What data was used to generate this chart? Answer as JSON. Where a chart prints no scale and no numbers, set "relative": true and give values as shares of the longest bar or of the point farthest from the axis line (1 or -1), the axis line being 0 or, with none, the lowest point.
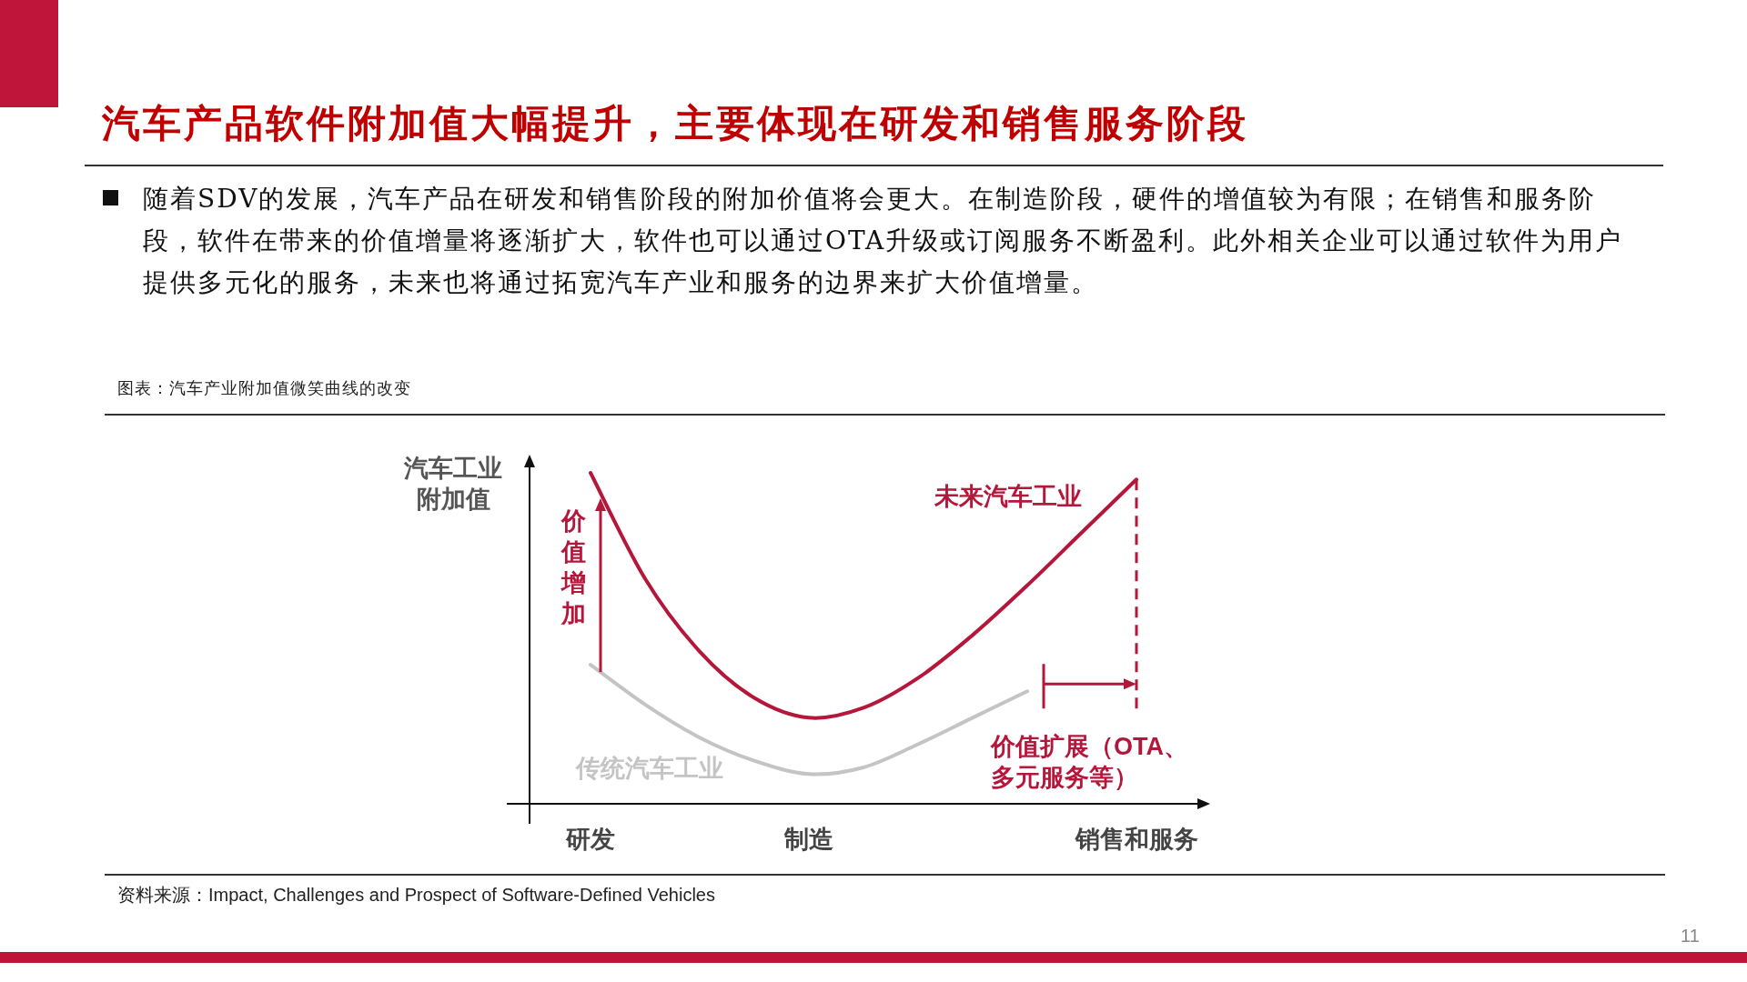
{
  "chart_data": {
    "type": "line",
    "title": "汽车产品软件附加值大幅提升，主要体现在研发和销售服务阶段",
    "subtitle": "随着SDV的发展，汽车产品在研发和销售阶段的附加价值将会更大。在制造阶段，硬件的增值较为有限；在销售和服务阶段，软件在带来的价值增量将逐渐扩大，软件也可以通过OTA升级或订阅服务不断盈利。此外相关企业可以通过软件为用户提供多元化的服务，未来也将通过拓宽汽车产业和服务的边界来扩大价值增量。",
    "ylabel": "汽车工业附加值",
    "relative": true,
    "tick_labels": "x",
    "categories": [
      "研发",
      null,
      null,
      null,
      "制造",
      null,
      null,
      null,
      null,
      null,
      "销售和服务"
    ],
    "series": [
      {
        "name": "未来汽车工业",
        "color": "#b5173b",
        "values": [
          1.0,
          0.68,
          0.46,
          0.32,
          0.26,
          0.29,
          0.38,
          0.51,
          0.66,
          0.82,
          0.98
        ]
      },
      {
        "name": "传统汽车工业",
        "color": "#c4c4c4",
        "values": [
          0.42,
          0.3,
          0.2,
          0.13,
          0.09,
          0.11,
          0.18,
          0.26,
          0.34,
          null,
          null
        ]
      }
    ],
    "annotations": [
      "图表：汽车产业附加值微笑曲线的改变",
      "价值增加",
      "价值扩展（OTA、多元服务等）",
      "资料来源：Impact, Challenges and Prospect of Software-Defined Vehicles",
      "11"
    ]
  }
}
